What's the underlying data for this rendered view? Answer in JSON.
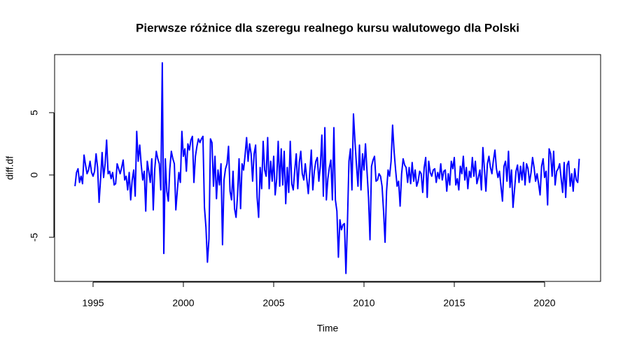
{
  "chart_data": {
    "type": "line",
    "title": "Pierwsze różnice dla szeregu realnego kursu walutowego dla Polski",
    "x_label": "Time",
    "y_label": "diff.df",
    "x": [
      1994,
      1994.083,
      1994.167,
      1994.25,
      1994.333,
      1994.417,
      1994.5,
      1994.583,
      1994.667,
      1994.75,
      1994.833,
      1994.917,
      1995,
      1995.083,
      1995.167,
      1995.25,
      1995.333,
      1995.417,
      1995.5,
      1995.583,
      1995.667,
      1995.75,
      1995.833,
      1995.917,
      1996,
      1996.083,
      1996.167,
      1996.25,
      1996.333,
      1996.417,
      1996.5,
      1996.583,
      1996.667,
      1996.75,
      1996.833,
      1996.917,
      1997,
      1997.083,
      1997.167,
      1997.25,
      1997.333,
      1997.417,
      1997.5,
      1997.583,
      1997.667,
      1997.75,
      1997.833,
      1997.917,
      1998,
      1998.083,
      1998.167,
      1998.25,
      1998.333,
      1998.417,
      1998.5,
      1998.583,
      1998.667,
      1998.75,
      1998.833,
      1998.917,
      1999,
      1999.083,
      1999.167,
      1999.25,
      1999.333,
      1999.417,
      1999.5,
      1999.583,
      1999.667,
      1999.75,
      1999.833,
      1999.917,
      2000,
      2000.083,
      2000.167,
      2000.25,
      2000.333,
      2000.417,
      2000.5,
      2000.583,
      2000.667,
      2000.75,
      2000.833,
      2000.917,
      2001,
      2001.083,
      2001.167,
      2001.25,
      2001.333,
      2001.417,
      2001.5,
      2001.583,
      2001.667,
      2001.75,
      2001.833,
      2001.917,
      2002,
      2002.083,
      2002.167,
      2002.25,
      2002.333,
      2002.417,
      2002.5,
      2002.583,
      2002.667,
      2002.75,
      2002.833,
      2002.917,
      2003,
      2003.083,
      2003.167,
      2003.25,
      2003.333,
      2003.417,
      2003.5,
      2003.583,
      2003.667,
      2003.75,
      2003.833,
      2003.917,
      2004,
      2004.083,
      2004.167,
      2004.25,
      2004.333,
      2004.417,
      2004.5,
      2004.583,
      2004.667,
      2004.75,
      2004.833,
      2004.917,
      2005,
      2005.083,
      2005.167,
      2005.25,
      2005.333,
      2005.417,
      2005.5,
      2005.583,
      2005.667,
      2005.75,
      2005.833,
      2005.917,
      2006,
      2006.083,
      2006.167,
      2006.25,
      2006.333,
      2006.417,
      2006.5,
      2006.583,
      2006.667,
      2006.75,
      2006.833,
      2006.917,
      2007,
      2007.083,
      2007.167,
      2007.25,
      2007.333,
      2007.417,
      2007.5,
      2007.583,
      2007.667,
      2007.75,
      2007.833,
      2007.917,
      2008,
      2008.083,
      2008.167,
      2008.25,
      2008.333,
      2008.417,
      2008.5,
      2008.583,
      2008.667,
      2008.75,
      2008.833,
      2008.917,
      2009,
      2009.083,
      2009.167,
      2009.25,
      2009.333,
      2009.417,
      2009.5,
      2009.583,
      2009.667,
      2009.75,
      2009.833,
      2009.917,
      2010,
      2010.083,
      2010.167,
      2010.25,
      2010.333,
      2010.417,
      2010.5,
      2010.583,
      2010.667,
      2010.75,
      2010.833,
      2010.917,
      2011,
      2011.083,
      2011.167,
      2011.25,
      2011.333,
      2011.417,
      2011.5,
      2011.583,
      2011.667,
      2011.75,
      2011.833,
      2011.917,
      2012,
      2012.083,
      2012.167,
      2012.25,
      2012.333,
      2012.417,
      2012.5,
      2012.583,
      2012.667,
      2012.75,
      2012.833,
      2012.917,
      2013,
      2013.083,
      2013.167,
      2013.25,
      2013.333,
      2013.417,
      2013.5,
      2013.583,
      2013.667,
      2013.75,
      2013.833,
      2013.917,
      2014,
      2014.083,
      2014.167,
      2014.25,
      2014.333,
      2014.417,
      2014.5,
      2014.583,
      2014.667,
      2014.75,
      2014.833,
      2014.917,
      2015,
      2015.083,
      2015.167,
      2015.25,
      2015.333,
      2015.417,
      2015.5,
      2015.583,
      2015.667,
      2015.75,
      2015.833,
      2015.917,
      2016,
      2016.083,
      2016.167,
      2016.25,
      2016.333,
      2016.417,
      2016.5,
      2016.583,
      2016.667,
      2016.75,
      2016.833,
      2016.917,
      2017,
      2017.083,
      2017.167,
      2017.25,
      2017.333,
      2017.417,
      2017.5,
      2017.583,
      2017.667,
      2017.75,
      2017.833,
      2017.917,
      2018,
      2018.083,
      2018.167,
      2018.25,
      2018.333,
      2018.417,
      2018.5,
      2018.583,
      2018.667,
      2018.75,
      2018.833,
      2018.917,
      2019,
      2019.083,
      2019.167,
      2019.25,
      2019.333,
      2019.417,
      2019.5,
      2019.583,
      2019.667,
      2019.75,
      2019.833,
      2019.917,
      2020,
      2020.083,
      2020.167,
      2020.25,
      2020.333,
      2020.417,
      2020.5,
      2020.583,
      2020.667,
      2020.75,
      2020.833,
      2020.917,
      2021,
      2021.083,
      2021.167,
      2021.25,
      2021.333,
      2021.417,
      2021.5,
      2021.583,
      2021.667,
      2021.75,
      2021.833,
      2021.917
    ],
    "series": [
      {
        "color": "#0000ff",
        "values": [
          -0.9,
          0.2,
          0.5,
          -0.6,
          -0.1,
          -0.7,
          1.6,
          0.8,
          0.1,
          0.4,
          1.1,
          0.2,
          -0.1,
          0.3,
          1.7,
          0.6,
          -2.2,
          -0.3,
          1.8,
          -0.2,
          0.9,
          2.8,
          0.1,
          0.3,
          -0.3,
          0.2,
          -0.8,
          -0.7,
          0.9,
          0.5,
          0.1,
          0.6,
          1.2,
          -0.4,
          -0.1,
          -1.2,
          0.2,
          -2.0,
          -0.4,
          0.4,
          -1.7,
          3.5,
          1.1,
          2.4,
          0.8,
          -0.4,
          0.3,
          -2.9,
          1.1,
          0.3,
          -0.6,
          1.3,
          -2.8,
          0.5,
          1.9,
          1.3,
          0.9,
          -1.2,
          9.0,
          -6.3,
          1.3,
          -1.3,
          -2.1,
          0.5,
          1.9,
          1.3,
          0.9,
          -2.8,
          -1.2,
          0.2,
          -0.6,
          3.5,
          1.5,
          2.1,
          0.3,
          2.5,
          2.0,
          2.8,
          3.1,
          -0.6,
          1.5,
          2.3,
          2.9,
          2.6,
          2.9,
          3.1,
          -2.6,
          -4.2,
          -7.0,
          -5.1,
          2.9,
          2.6,
          -0.9,
          1.5,
          -1.9,
          0.4,
          -0.8,
          0.9,
          -5.6,
          -0.4,
          0.5,
          0.9,
          2.3,
          -1.3,
          -2.0,
          0.3,
          -2.7,
          -3.4,
          -1.6,
          1.3,
          -2.7,
          0.9,
          0.4,
          1.6,
          3.0,
          1.1,
          2.5,
          1.7,
          -0.5,
          1.7,
          2.4,
          -1.8,
          -3.4,
          0.6,
          -1.1,
          2.7,
          0.4,
          -0.1,
          3.0,
          -1.1,
          1.1,
          -0.5,
          1.5,
          -1.6,
          -0.3,
          2.7,
          -0.9,
          2.1,
          -0.8,
          1.9,
          -2.3,
          0.6,
          -1.4,
          2.7,
          -0.7,
          -1.2,
          0.4,
          1.7,
          -1.1,
          1.0,
          1.9,
          0.1,
          -0.4,
          0.9,
          -0.3,
          -1.5,
          0.2,
          2.0,
          -1.2,
          0.3,
          1.1,
          1.4,
          -0.5,
          0.7,
          3.2,
          -1.7,
          3.8,
          -2.0,
          -0.3,
          0.6,
          1.2,
          -2.0,
          3.8,
          -2.0,
          -2.9,
          -6.6,
          -3.6,
          -4.4,
          -4.0,
          -3.9,
          -7.9,
          -3.9,
          1.1,
          2.1,
          -1.2,
          4.9,
          2.7,
          0.8,
          -0.9,
          2.4,
          -1.2,
          1.7,
          0.4,
          2.5,
          0.3,
          -1.8,
          -5.2,
          0.7,
          1.2,
          1.5,
          -0.5,
          -0.4,
          0.1,
          -0.1,
          -0.9,
          -2.9,
          -5.4,
          -1.3,
          0.4,
          -0.1,
          1.1,
          4.0,
          1.9,
          0.4,
          -0.9,
          -0.5,
          -2.5,
          0.1,
          1.3,
          0.8,
          0.6,
          -0.6,
          0.6,
          -0.7,
          1.0,
          -0.5,
          0.4,
          -0.9,
          -0.5,
          0.3,
          0.1,
          -1.4,
          0.6,
          1.4,
          -1.8,
          1.1,
          0.2,
          -0.1,
          0.4,
          0.5,
          -0.6,
          0.2,
          -0.3,
          0.9,
          -0.4,
          0.3,
          0.4,
          -1.3,
          0.1,
          -0.8,
          1.1,
          0.5,
          1.4,
          -0.8,
          -0.3,
          -1.2,
          0.7,
          0.1,
          1.5,
          -0.4,
          0.6,
          -1.1,
          0.3,
          -0.2,
          1.4,
          -0.1,
          1.1,
          -0.7,
          -0.2,
          0.4,
          -1.2,
          2.2,
          0.5,
          -1.3,
          0.9,
          1.5,
          0.6,
          0.1,
          1.2,
          2.0,
          0.5,
          -0.2,
          0.3,
          -0.9,
          -2.1,
          0.7,
          1.1,
          -0.5,
          1.9,
          -1.0,
          0.4,
          -2.6,
          -1.2,
          0.3,
          0.8,
          -0.6,
          0.7,
          -0.4,
          1.0,
          -0.8,
          0.9,
          0.5,
          -0.6,
          0.2,
          1.4,
          0.6,
          -0.5,
          0.1,
          -0.7,
          -1.6,
          0.7,
          1.3,
          -0.2,
          0.3,
          -2.4,
          2.1,
          1.7,
          -0.1,
          1.9,
          -0.8,
          0.3,
          0.5,
          0.9,
          -0.3,
          -1.4,
          1.0,
          -1.8,
          0.8,
          1.1,
          -0.9,
          0.1,
          -1.3,
          0.5,
          -0.4,
          -0.6,
          1.3
        ]
      }
    ],
    "xlim": [
      1992.87,
      2023.1
    ],
    "ylim": [
      -8.54,
      9.66
    ],
    "xticks": [
      1995,
      2000,
      2005,
      2010,
      2015,
      2020
    ],
    "yticks": [
      -5,
      0,
      5
    ]
  }
}
